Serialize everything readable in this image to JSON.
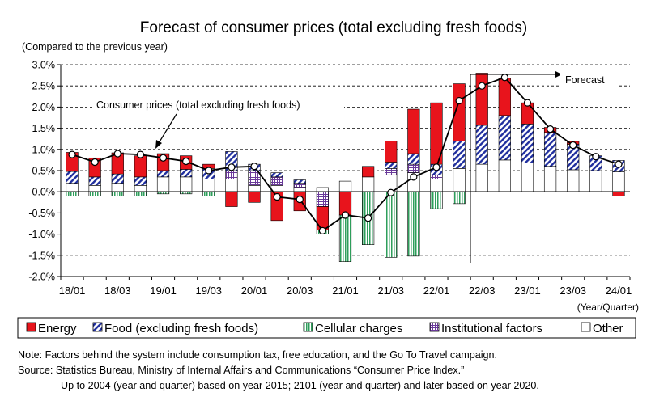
{
  "title": "Forecast of consumer prices (total excluding fresh foods)",
  "y_unit_label": "(Compared to the previous year)",
  "x_unit_label": "(Year/Quarter)",
  "annotation_cpi": "Consumer prices (total excluding fresh foods)",
  "annotation_forecast": "Forecast",
  "legend": [
    {
      "label": "Energy",
      "color": "#e8141c",
      "pattern": "solid"
    },
    {
      "label": "Food (excluding fresh foods)",
      "color": "#1f2e9e",
      "pattern": "diagonal"
    },
    {
      "label": "Cellular charges",
      "color": "#2e9e5b",
      "pattern": "vertical"
    },
    {
      "label": "Institutional factors",
      "color": "#6a3a9a",
      "pattern": "grid"
    },
    {
      "label": "Other",
      "color": "#ffffff",
      "pattern": "none"
    }
  ],
  "notes": {
    "note": "Note: Factors behind the system include consumption tax, free education, and the Go To Travel campaign.",
    "source": "Source: Statistics Bureau, Ministry of Internal Affairs and Communications “Consumer Price Index.”",
    "source2": "Up to 2004 (year and quarter) based on year 2015; 2101 (year and quarter) and later based on year 2020."
  },
  "chart_data": {
    "type": "bar",
    "stacked": true,
    "ylim": [
      -2.0,
      3.0
    ],
    "y_ticks": [
      "3.0%",
      "2.5%",
      "2.0%",
      "1.5%",
      "1.0%",
      "0.5%",
      "0.0%",
      "-0.5%",
      "-1.0%",
      "-1.5%",
      "-2.0%"
    ],
    "y_tick_values": [
      3.0,
      2.5,
      2.0,
      1.5,
      1.0,
      0.5,
      0.0,
      -0.5,
      -1.0,
      -1.5,
      -2.0
    ],
    "categories": [
      "18/01",
      "18/02",
      "18/03",
      "18/04",
      "19/01",
      "19/02",
      "19/03",
      "19/04",
      "20/01",
      "20/02",
      "20/03",
      "20/04",
      "21/01",
      "21/02",
      "21/03",
      "21/04",
      "22/01",
      "22/02",
      "22/03",
      "22/04",
      "23/01",
      "23/02",
      "23/03",
      "23/04",
      "24/01"
    ],
    "x_tick_labels": [
      "18/01",
      "",
      "18/03",
      "",
      "19/01",
      "",
      "19/03",
      "",
      "20/01",
      "",
      "20/03",
      "",
      "21/01",
      "",
      "21/03",
      "",
      "22/01",
      "",
      "22/03",
      "",
      "23/01",
      "",
      "23/03",
      "",
      "24/01"
    ],
    "forecast_start_index": 17,
    "series": [
      {
        "name": "Other",
        "values": [
          0.2,
          0.15,
          0.2,
          0.15,
          0.35,
          0.35,
          0.3,
          0.3,
          0.15,
          0.15,
          0.1,
          0.1,
          0.25,
          0.35,
          0.4,
          0.45,
          0.3,
          0.55,
          0.65,
          0.75,
          0.68,
          0.6,
          0.52,
          0.5,
          0.47
        ]
      },
      {
        "name": "Institutional factors",
        "values": [
          0,
          0,
          0,
          0,
          0,
          0,
          0,
          0.2,
          0.35,
          0.2,
          0.1,
          -0.35,
          0,
          0,
          0.15,
          0.2,
          0.1,
          0,
          0,
          0,
          0,
          0,
          0,
          0,
          0
        ]
      },
      {
        "name": "Food (excluding fresh foods)",
        "values": [
          0.28,
          0.2,
          0.22,
          0.2,
          0.15,
          0.18,
          0.25,
          0.45,
          0.15,
          0.1,
          0.08,
          0,
          0,
          0,
          0.15,
          0.25,
          0.25,
          0.65,
          0.92,
          1.05,
          0.92,
          0.8,
          0.6,
          0.35,
          0.27
        ]
      },
      {
        "name": "Energy",
        "values": [
          0.45,
          0.45,
          0.5,
          0.5,
          0.4,
          0.32,
          0.1,
          -0.35,
          -0.25,
          -0.68,
          -0.45,
          -0.55,
          -0.55,
          0.25,
          0.5,
          1.05,
          1.45,
          1.35,
          1.23,
          0.88,
          0.5,
          0.12,
          0.07,
          0,
          -0.1
        ]
      },
      {
        "name": "Cellular charges",
        "values": [
          -0.1,
          -0.1,
          -0.1,
          -0.1,
          -0.05,
          -0.05,
          -0.1,
          0,
          0,
          0,
          0,
          -0.1,
          -1.1,
          -1.25,
          -1.55,
          -1.52,
          -0.4,
          -0.28,
          0,
          0,
          0,
          0,
          0,
          0,
          0
        ]
      }
    ],
    "line": {
      "name": "Consumer prices (total excluding fresh foods)",
      "values": [
        0.88,
        0.7,
        0.9,
        0.88,
        0.8,
        0.72,
        0.5,
        0.58,
        0.6,
        -0.12,
        -0.18,
        -0.92,
        -0.55,
        -0.62,
        -0.02,
        0.35,
        0.58,
        2.15,
        2.5,
        2.7,
        2.1,
        1.48,
        1.1,
        0.83,
        0.65
      ]
    }
  }
}
